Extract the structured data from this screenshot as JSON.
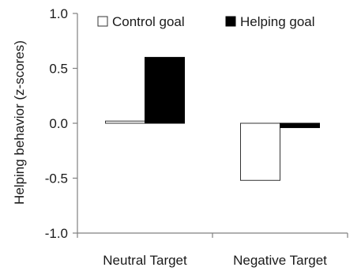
{
  "chart_data": {
    "type": "bar",
    "title": "",
    "xlabel": "",
    "ylabel": "Helping behavior (z-scores)",
    "ylim": [
      -1.0,
      1.0
    ],
    "yticks": [
      "1.0",
      "0.5",
      "0.0",
      "-0.5",
      "-1.0"
    ],
    "ytick_values": [
      1.0,
      0.5,
      0.0,
      -0.5,
      -1.0
    ],
    "categories": [
      "Neutral Target",
      "Negative Target"
    ],
    "series": [
      {
        "name": "Control goal",
        "values": [
          0.02,
          -0.52
        ],
        "color": "#ffffff"
      },
      {
        "name": "Helping goal",
        "values": [
          0.6,
          -0.04
        ],
        "color": "#000000"
      }
    ],
    "grid": false,
    "legend_position": "top"
  }
}
